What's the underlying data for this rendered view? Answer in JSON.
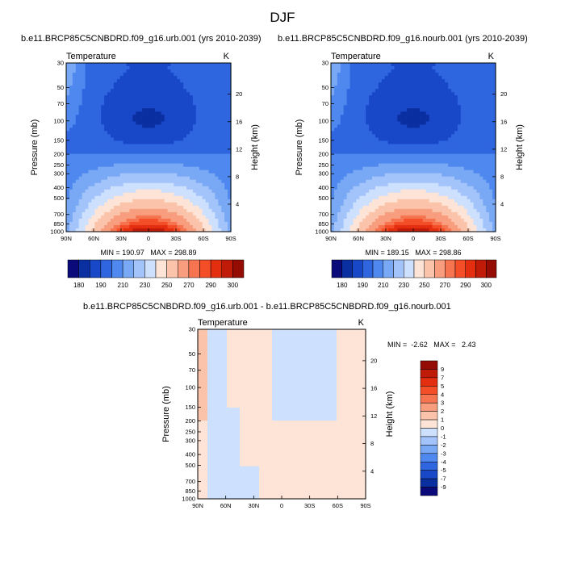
{
  "page": {
    "title": "DJF"
  },
  "pressure_ticks": [
    "30",
    "50",
    "70",
    "100",
    "150",
    "200",
    "250",
    "300",
    "400",
    "500",
    "700",
    "850",
    "1000"
  ],
  "lat_ticks": [
    "90N",
    "60N",
    "30N",
    "0",
    "30S",
    "60S",
    "90S"
  ],
  "height_ticks": [
    "20",
    "16",
    "12",
    "8",
    "4"
  ],
  "chart_data": [
    {
      "type": "heatmap",
      "title": "b.e11.BRCP85C5CNBDRD.f09_g16.urb.001 (yrs 2010-2039)",
      "subtitle_left": "Temperature",
      "subtitle_right": "K",
      "xlabel": "",
      "ylabel": "Pressure (mb)",
      "ylabel_right": "Height (km)",
      "stats": "MIN = 190.97   MAX = 298.89",
      "min": 190.97,
      "max": 298.89,
      "colorbar": {
        "labels": [
          "180",
          "190",
          "210",
          "230",
          "250",
          "270",
          "290",
          "300"
        ],
        "colors": [
          "#0a0a7a",
          "#0a2fa0",
          "#1848c8",
          "#2f66e0",
          "#4f88ee",
          "#79a8f5",
          "#a3c4fa",
          "#cde0fd",
          "#fde4d6",
          "#fac3aa",
          "#f89d7e",
          "#f67550",
          "#f44e28",
          "#e42e10",
          "#c01a08",
          "#940c04"
        ]
      }
    },
    {
      "type": "heatmap",
      "title": "b.e11.BRCP85C5CNBDRD.f09_g16.nourb.001 (yrs 2010-2039)",
      "subtitle_left": "Temperature",
      "subtitle_right": "K",
      "xlabel": "",
      "ylabel": "Pressure (mb)",
      "ylabel_right": "Height (km)",
      "stats": "MIN = 189.15   MAX = 298.86",
      "min": 189.15,
      "max": 298.86,
      "colorbar": {
        "labels": [
          "180",
          "190",
          "210",
          "230",
          "250",
          "270",
          "290",
          "300"
        ],
        "colors": [
          "#0a0a7a",
          "#0a2fa0",
          "#1848c8",
          "#2f66e0",
          "#4f88ee",
          "#79a8f5",
          "#a3c4fa",
          "#cde0fd",
          "#fde4d6",
          "#fac3aa",
          "#f89d7e",
          "#f67550",
          "#f44e28",
          "#e42e10",
          "#c01a08",
          "#940c04"
        ]
      }
    },
    {
      "type": "heatmap",
      "title": "b.e11.BRCP85C5CNBDRD.f09_g16.urb.001 - b.e11.BRCP85C5CNBDRD.f09_g16.nourb.001",
      "subtitle_left": "Temperature",
      "subtitle_right": "K",
      "xlabel": "",
      "ylabel": "Pressure (mb)",
      "ylabel_right": "Height (km)",
      "stats": "MIN =  -2.62   MAX =   2.43",
      "min": -2.62,
      "max": 2.43,
      "colorbar": {
        "labels": [
          "9",
          "7",
          "5",
          "4",
          "3",
          "2",
          "1",
          "0",
          "-1",
          "-2",
          "-3",
          "-4",
          "-5",
          "-7",
          "-9"
        ],
        "colors": [
          "#940c04",
          "#c01a08",
          "#e42e10",
          "#f44e28",
          "#f67550",
          "#f89d7e",
          "#fac3aa",
          "#fde4d6",
          "#cde0fd",
          "#a3c4fa",
          "#79a8f5",
          "#4f88ee",
          "#2f66e0",
          "#1848c8",
          "#0a2fa0",
          "#0a0a7a"
        ]
      }
    }
  ]
}
